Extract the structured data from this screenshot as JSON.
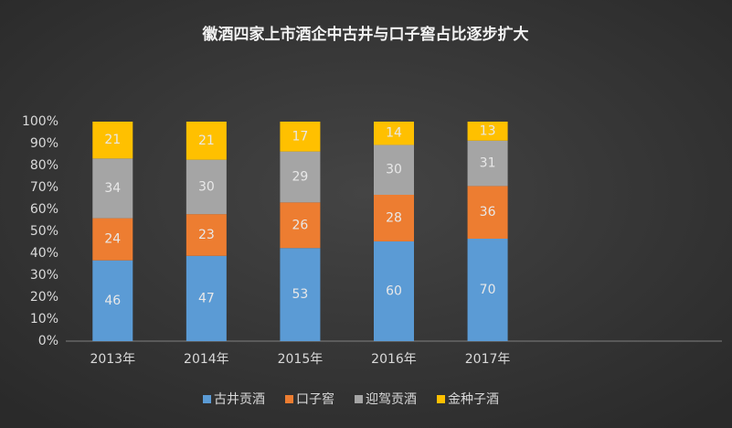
{
  "chart_data": {
    "type": "stacked_percent_bar",
    "title": "徽酒四家上市酒企中古井与口子窖占比逐步扩大",
    "categories": [
      "2013年",
      "2014年",
      "2015年",
      "2016年",
      "2017年",
      null,
      null
    ],
    "series": [
      {
        "name": "古井贡酒",
        "color": "#5b9bd5",
        "values": [
          46,
          47,
          53,
          60,
          70,
          null,
          null
        ]
      },
      {
        "name": "口子窖",
        "color": "#ed7d31",
        "values": [
          24,
          23,
          26,
          28,
          36,
          null,
          null
        ]
      },
      {
        "name": "迎驾贡酒",
        "color": "#a5a5a5",
        "values": [
          34,
          30,
          29,
          30,
          31,
          null,
          null
        ]
      },
      {
        "name": "金种子酒",
        "color": "#ffc000",
        "values": [
          21,
          21,
          17,
          14,
          13,
          null,
          null
        ]
      }
    ],
    "ylim": [
      0,
      100
    ],
    "yticks": [
      {
        "value": 0,
        "label": "0%"
      },
      {
        "value": 10,
        "label": "10%"
      },
      {
        "value": 20,
        "label": "20%"
      },
      {
        "value": 30,
        "label": "30%"
      },
      {
        "value": 40,
        "label": "40%"
      },
      {
        "value": 50,
        "label": "50%"
      },
      {
        "value": 60,
        "label": "60%"
      },
      {
        "value": 70,
        "label": "70%"
      },
      {
        "value": 80,
        "label": "80%"
      },
      {
        "value": 90,
        "label": "90%"
      },
      {
        "value": 100,
        "label": "100%"
      }
    ],
    "legend": "bottom"
  }
}
